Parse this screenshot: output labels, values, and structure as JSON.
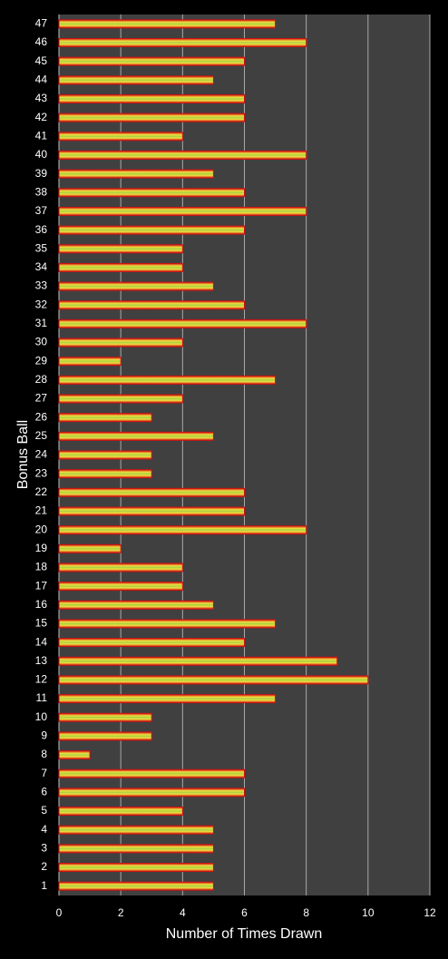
{
  "chart_data": {
    "type": "hbar",
    "x_label": "Number of Times Drawn",
    "y_label": "Bonus Ball",
    "categories": [
      "1",
      "2",
      "3",
      "4",
      "5",
      "6",
      "7",
      "8",
      "9",
      "10",
      "11",
      "12",
      "13",
      "14",
      "15",
      "16",
      "17",
      "18",
      "19",
      "20",
      "21",
      "22",
      "23",
      "24",
      "25",
      "26",
      "27",
      "28",
      "29",
      "30",
      "31",
      "32",
      "33",
      "34",
      "35",
      "36",
      "37",
      "38",
      "39",
      "40",
      "41",
      "42",
      "43",
      "44",
      "45",
      "46",
      "47"
    ],
    "values": [
      5,
      5,
      5,
      5,
      4,
      6,
      6,
      1,
      3,
      3,
      7,
      10,
      9,
      6,
      7,
      5,
      4,
      4,
      2,
      8,
      6,
      6,
      3,
      3,
      5,
      3,
      4,
      7,
      2,
      4,
      8,
      6,
      5,
      4,
      4,
      6,
      8,
      6,
      5,
      8,
      4,
      6,
      6,
      5,
      6,
      8,
      7
    ],
    "color": "#a8d040",
    "edge_color": "#d01010",
    "xlim": [
      0,
      12
    ],
    "xticks": [
      0,
      2,
      4,
      6,
      8,
      10,
      12
    ],
    "grid": true
  }
}
